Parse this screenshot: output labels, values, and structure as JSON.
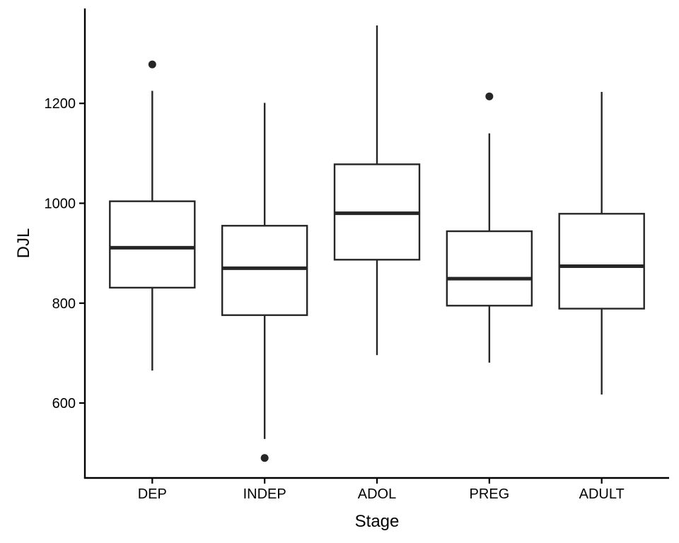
{
  "chart_data": {
    "type": "boxplot",
    "title": "",
    "xlabel": "Stage",
    "ylabel": "DJL",
    "ylim": [
      450,
      1390
    ],
    "yticks": [
      600,
      800,
      1000,
      1200
    ],
    "yticklabels": [
      "600",
      "800",
      "1000",
      "1200"
    ],
    "grid": false,
    "categories": [
      "DEP",
      "INDEP",
      "ADOL",
      "PREG",
      "ADULT"
    ],
    "boxes": [
      {
        "category": "DEP",
        "whisker_low": 665,
        "q1": 831,
        "median": 911,
        "q3": 1004,
        "whisker_high": 1225,
        "outliers": [
          1278
        ]
      },
      {
        "category": "INDEP",
        "whisker_low": 528,
        "q1": 776,
        "median": 870,
        "q3": 955,
        "whisker_high": 1201,
        "outliers": [
          490
        ]
      },
      {
        "category": "ADOL",
        "whisker_low": 696,
        "q1": 887,
        "median": 980,
        "q3": 1078,
        "whisker_high": 1356,
        "outliers": []
      },
      {
        "category": "PREG",
        "whisker_low": 681,
        "q1": 795,
        "median": 849,
        "q3": 944,
        "whisker_high": 1140,
        "outliers": [
          1214
        ]
      },
      {
        "category": "ADULT",
        "whisker_low": 617,
        "q1": 789,
        "median": 874,
        "q3": 979,
        "whisker_high": 1223,
        "outliers": []
      }
    ],
    "colors": {
      "box_line": "#262626",
      "box_fill": "#ffffff",
      "axis": "#000000"
    }
  }
}
